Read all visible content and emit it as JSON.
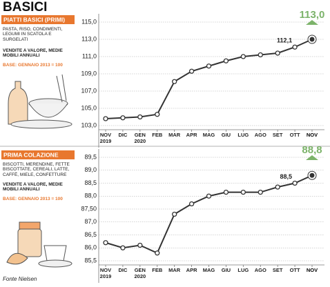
{
  "title": "BASICI",
  "source": "Fonte Nielsen",
  "chart_data": [
    {
      "type": "line",
      "title": "PIATTI BASICI (PRIMI)",
      "subtitle": "PASTA, RISO, CONDIMENTI, LEGUMI IN SCATOLA E SURGELATI",
      "note": "VENDITE A VALORE, MEDIE MOBILI ANNUALI",
      "base": "BASE: GENNAIO 2013 = 100",
      "categories": [
        "NOV 2019",
        "DIC",
        "GEN 2020",
        "FEB",
        "MAR",
        "APR",
        "MAG",
        "GIU",
        "LUG",
        "AGO",
        "SET",
        "OTT",
        "NOV"
      ],
      "values": [
        103.8,
        103.9,
        104.0,
        104.3,
        108.1,
        109.3,
        109.9,
        110.5,
        111.0,
        111.2,
        111.4,
        112.1,
        113.0
      ],
      "value_labels": [
        null,
        null,
        null,
        null,
        null,
        null,
        null,
        null,
        null,
        null,
        null,
        "112,1",
        "113,0"
      ],
      "color": "#333333",
      "highlight_color": "#7cb36a",
      "ylim": [
        103.0,
        115.0
      ],
      "yticks": [
        {
          "value": 103.0,
          "label": "103,0"
        },
        {
          "value": 105.0,
          "label": "105,0"
        },
        {
          "value": 107.0,
          "label": "107,0"
        },
        {
          "value": 109.0,
          "label": "109,0"
        },
        {
          "value": 111.0,
          "label": "111,0"
        },
        {
          "value": 113.0,
          "label": "113,0"
        },
        {
          "value": 115.0,
          "label": "115,0"
        }
      ],
      "grid": true
    },
    {
      "type": "line",
      "title": "PRIMA COLAZIONE",
      "subtitle": "BISCOTTI, MERENDINE, FETTE BISCOTTATE, CEREALI, LATTE, CAFFÈ, MIELE, CONFETTURE",
      "note": "VENDITE A VALORE, MEDIE MOBILI ANNUALI",
      "base": "BASE: GENNAIO 2013 = 100",
      "categories": [
        "NOV 2019",
        "DIC",
        "GEN 2020",
        "FEB",
        "MAR",
        "APR",
        "MAG",
        "GIU",
        "LUG",
        "AGO",
        "SET",
        "OTT",
        "NOV"
      ],
      "values": [
        86.2,
        86.0,
        86.1,
        85.8,
        87.3,
        87.7,
        88.0,
        88.15,
        88.15,
        88.15,
        88.35,
        88.5,
        88.8
      ],
      "value_labels": [
        null,
        null,
        null,
        null,
        null,
        null,
        null,
        null,
        null,
        null,
        null,
        "88,5",
        "88,8"
      ],
      "color": "#333333",
      "highlight_color": "#7cb36a",
      "ylim": [
        85.5,
        89.5
      ],
      "yticks": [
        {
          "value": 85.5,
          "label": "85,5"
        },
        {
          "value": 86.0,
          "label": "86,0"
        },
        {
          "value": 86.5,
          "label": "86,5"
        },
        {
          "value": 87.0,
          "label": "87,0"
        },
        {
          "value": 87.5,
          "label": "87,50"
        },
        {
          "value": 88.0,
          "label": "88,0"
        },
        {
          "value": 88.5,
          "label": "88,5"
        },
        {
          "value": 89.0,
          "label": "89,0"
        },
        {
          "value": 89.5,
          "label": "89,5"
        }
      ],
      "grid": true
    }
  ]
}
